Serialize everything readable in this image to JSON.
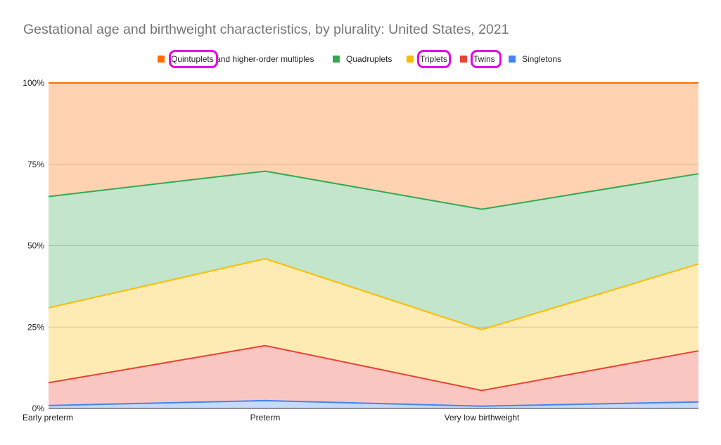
{
  "chart_data": {
    "type": "area",
    "stacked": true,
    "percent": true,
    "title": "Gestational age and birthweight characteristics, by plurality: United States, 2021",
    "categories": [
      "Early preterm",
      "Preterm",
      "Very low birthweight",
      ""
    ],
    "y_ticks": [
      "0%",
      "25%",
      "50%",
      "75%",
      "100%"
    ],
    "ylim": [
      0,
      100
    ],
    "grid": true,
    "legend_position": "top",
    "series": [
      {
        "name": "Singletons",
        "color": "#4285f4",
        "values": [
          0.9,
          2.4,
          0.7,
          2.0
        ]
      },
      {
        "name": "Twins",
        "color": "#ea4335",
        "values": [
          7.0,
          16.9,
          4.8,
          15.7
        ]
      },
      {
        "name": "Triplets",
        "color": "#fbbc04",
        "values": [
          23.0,
          26.7,
          18.7,
          26.7
        ]
      },
      {
        "name": "Quadruplets",
        "color": "#34a853",
        "values": [
          34.2,
          26.9,
          37.0,
          27.7
        ]
      },
      {
        "name": "Quintuplets and higher-order multiples",
        "color": "#ff6d01",
        "values": [
          34.9,
          27.1,
          38.8,
          27.9
        ]
      }
    ],
    "legend_order": [
      "Quintuplets and higher-order multiples",
      "Quadruplets",
      "Triplets",
      "Twins",
      "Singletons"
    ],
    "highlighted_legend_words": [
      "Quintuplets",
      "Triplets",
      "Twins"
    ]
  }
}
